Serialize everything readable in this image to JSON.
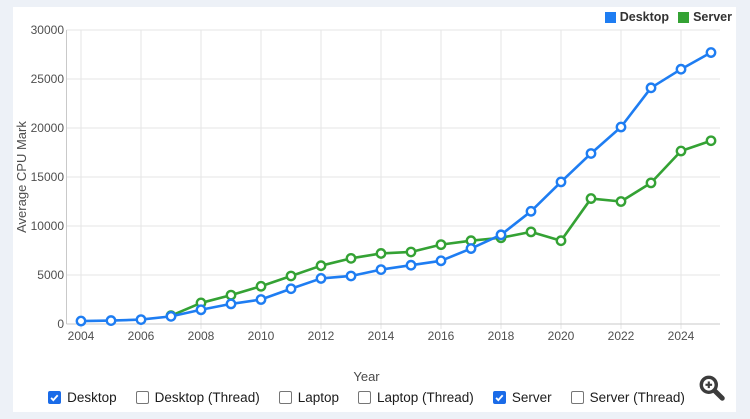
{
  "chart_data": {
    "type": "line",
    "title": "",
    "xlabel": "Year",
    "ylabel": "Average CPU Mark",
    "x_ticks": [
      "2004",
      "2006",
      "2008",
      "2010",
      "2012",
      "2014",
      "2016",
      "2018",
      "2020",
      "2022",
      "2024"
    ],
    "y_ticks": [
      "0",
      "5000",
      "10000",
      "15000",
      "20000",
      "25000",
      "30000"
    ],
    "ylim": [
      0,
      30000
    ],
    "xlim": [
      2003.5,
      2025.3
    ],
    "grid": true,
    "legend_position": "top-right",
    "series": [
      {
        "name": "Desktop",
        "color": "#1e7df2",
        "x": [
          2004,
          2005,
          2006,
          2007,
          2008,
          2009,
          2010,
          2011,
          2012,
          2013,
          2014,
          2015,
          2016,
          2017,
          2018,
          2019,
          2020,
          2021,
          2022,
          2023,
          2024,
          2025
        ],
        "values": [
          300,
          350,
          450,
          780,
          1450,
          2050,
          2500,
          3600,
          4650,
          4900,
          5550,
          6000,
          6450,
          7700,
          9100,
          11500,
          14500,
          17400,
          20100,
          24100,
          26000,
          27700
        ]
      },
      {
        "name": "Server",
        "color": "#34a234",
        "x": [
          2007,
          2008,
          2009,
          2010,
          2011,
          2012,
          2013,
          2014,
          2015,
          2016,
          2017,
          2018,
          2019,
          2020,
          2021,
          2022,
          2023,
          2024,
          2025
        ],
        "values": [
          850,
          2150,
          2950,
          3850,
          4900,
          5950,
          6700,
          7200,
          7350,
          8100,
          8500,
          8800,
          9400,
          8500,
          12800,
          12500,
          14400,
          17650,
          18700
        ]
      }
    ]
  },
  "legend": {
    "items": [
      {
        "label": "Desktop",
        "color": "#1e7df2"
      },
      {
        "label": "Server",
        "color": "#34a234"
      }
    ]
  },
  "controls": {
    "checkboxes": [
      {
        "label": "Desktop",
        "checked": true
      },
      {
        "label": "Desktop (Thread)",
        "checked": false
      },
      {
        "label": "Laptop",
        "checked": false
      },
      {
        "label": "Laptop (Thread)",
        "checked": false
      },
      {
        "label": "Server",
        "checked": true
      },
      {
        "label": "Server (Thread)",
        "checked": false
      }
    ],
    "checkbox_accent": "#1a6be8"
  },
  "icons": {
    "zoom_button": "zoom-in-magnifier"
  },
  "colors": {
    "page_background": "#edf1f7",
    "card_background": "#ffffff",
    "gridline": "#e6e6e6",
    "axis_line": "#c9c9c9",
    "tick_text": "#4f4f4f",
    "legend_text": "#333333",
    "zoom_icon": "#3c3c3c"
  }
}
